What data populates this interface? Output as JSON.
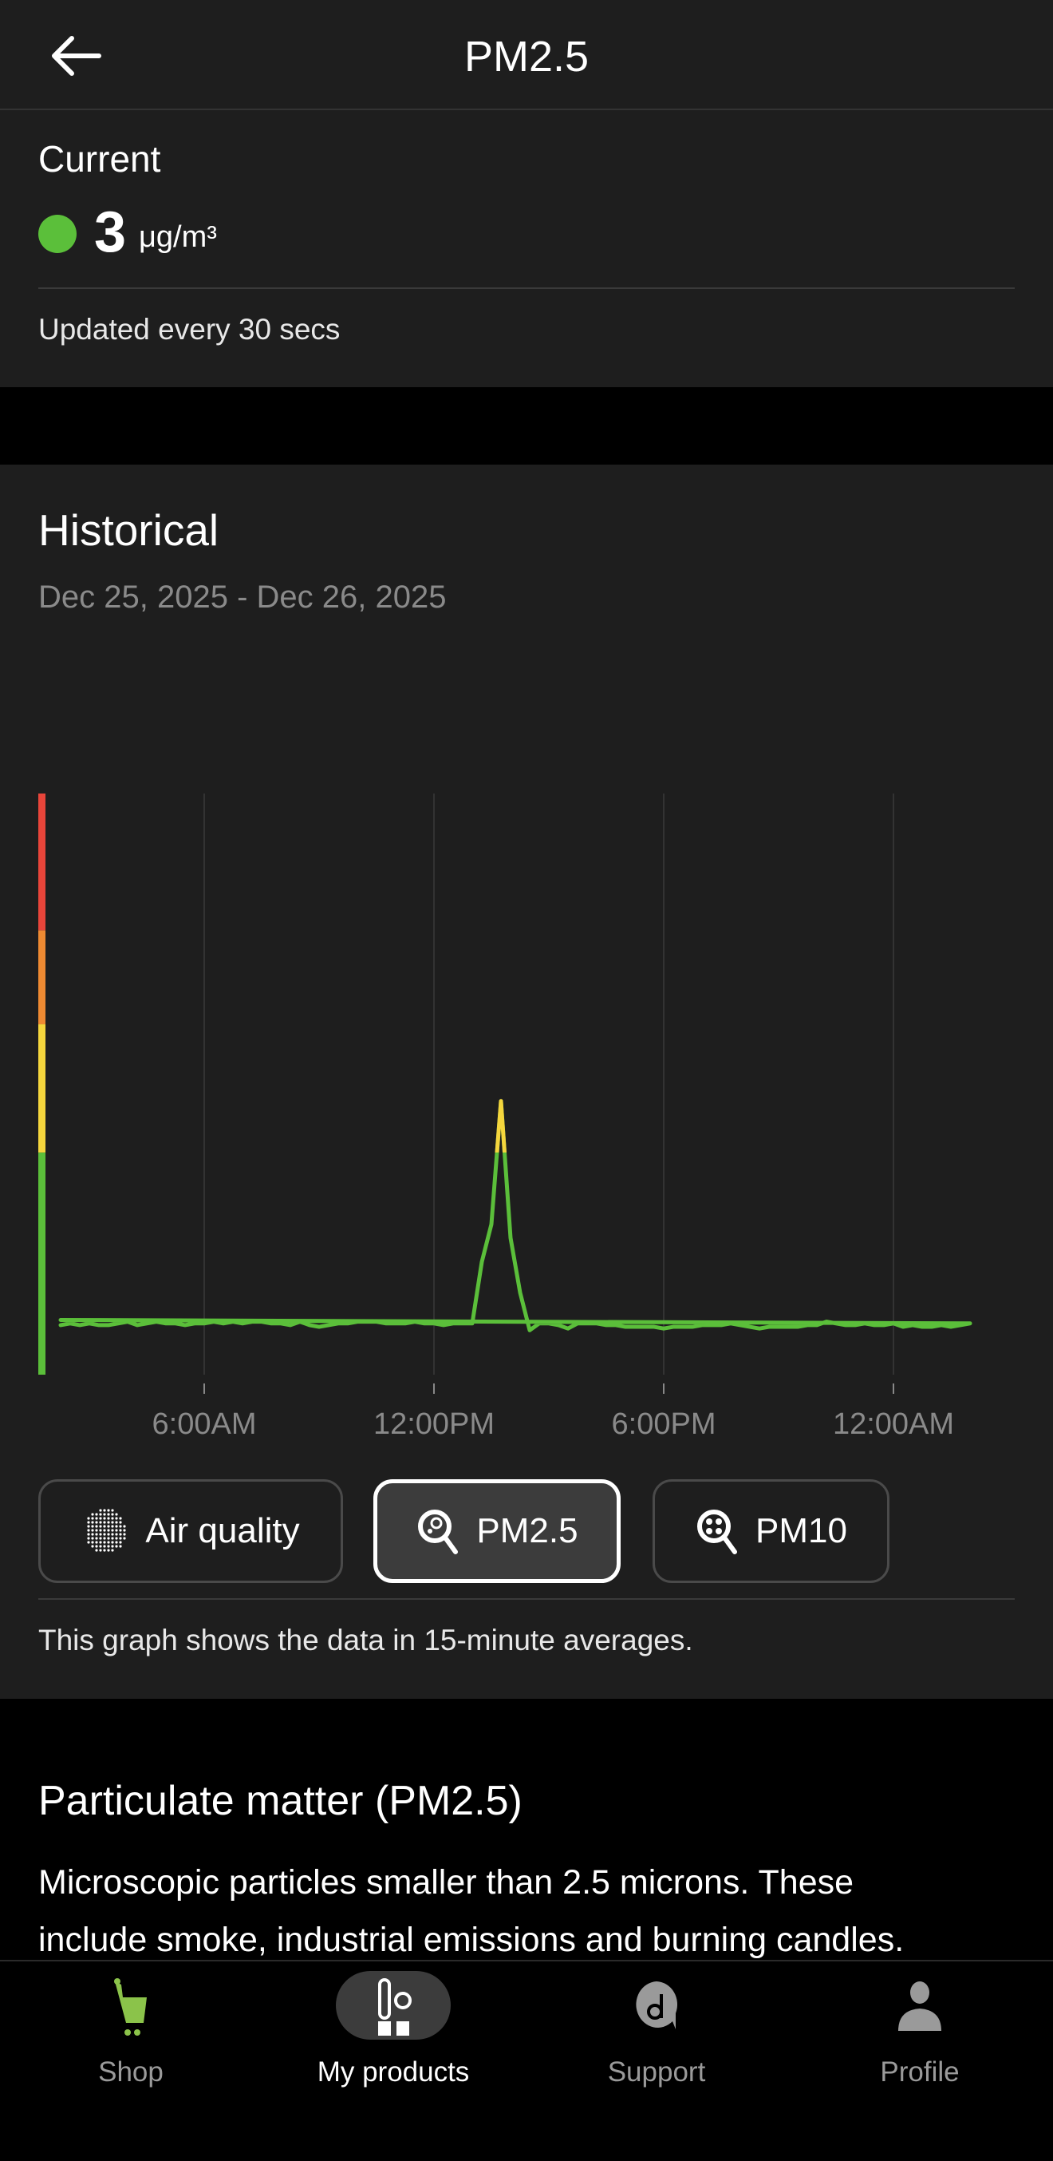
{
  "header": {
    "title": "PM2.5",
    "back_icon": "arrow-left-icon"
  },
  "current": {
    "heading": "Current",
    "value": "3",
    "unit": "μg/m³",
    "status_color": "#5bbf3a",
    "updated_text": "Updated every 30 secs"
  },
  "historical": {
    "heading": "Historical",
    "date_range": "Dec 25, 2025 - Dec 26, 2025",
    "footnote": "This graph shows the data in 15-minute averages.",
    "chips": [
      {
        "label": "Air quality",
        "icon": "air-quality-dots-icon",
        "selected": false
      },
      {
        "label": "PM2.5",
        "icon": "pm25-magnifier-icon",
        "selected": true
      },
      {
        "label": "PM10",
        "icon": "pm10-magnifier-icon",
        "selected": false
      }
    ]
  },
  "chart_data": {
    "type": "line",
    "title": "",
    "xlabel": "",
    "ylabel": "",
    "x_tick_labels": [
      "6:00AM",
      "12:00PM",
      "6:00PM",
      "12:00AM"
    ],
    "x_tick_times": [
      "06:00",
      "12:00",
      "18:00",
      "00:00"
    ],
    "grid": "vertical",
    "ylim": [
      0,
      34
    ],
    "bands": [
      {
        "from": 0,
        "to": 13,
        "color": "#5bbf3a"
      },
      {
        "from": 13,
        "to": 20.5,
        "color": "#f5d63d"
      },
      {
        "from": 20.5,
        "to": 26,
        "color": "#ee8a32"
      },
      {
        "from": 26,
        "to": 34,
        "color": "#e8453a"
      }
    ],
    "x": [
      "02:15",
      "02:30",
      "02:45",
      "03:00",
      "03:15",
      "03:30",
      "03:45",
      "04:00",
      "04:15",
      "04:30",
      "04:45",
      "05:00",
      "05:15",
      "05:30",
      "05:45",
      "06:00",
      "06:15",
      "06:30",
      "06:45",
      "07:00",
      "07:15",
      "07:30",
      "07:45",
      "08:00",
      "08:15",
      "08:30",
      "08:45",
      "09:00",
      "09:15",
      "09:30",
      "09:45",
      "10:00",
      "10:15",
      "10:30",
      "10:45",
      "11:00",
      "11:15",
      "11:30",
      "11:45",
      "12:00",
      "12:15",
      "12:30",
      "12:45",
      "13:00",
      "13:15",
      "13:30",
      "13:45",
      "14:00",
      "14:15",
      "14:30",
      "14:45",
      "15:00",
      "15:15",
      "15:30",
      "15:45",
      "16:00",
      "16:15",
      "16:30",
      "16:45",
      "17:00",
      "17:15",
      "17:30",
      "17:45",
      "18:00",
      "18:15",
      "18:30",
      "18:45",
      "19:00",
      "19:15",
      "19:30",
      "19:45",
      "20:00",
      "20:15",
      "20:30",
      "20:45",
      "21:00",
      "21:15",
      "21:30",
      "21:45",
      "22:00",
      "22:15",
      "22:30",
      "22:45",
      "23:00",
      "23:15",
      "23:30",
      "23:45",
      "00:00",
      "00:15",
      "00:30",
      "00:45",
      "01:00",
      "01:15",
      "01:30",
      "01:45",
      "02:00",
      "02:15"
    ],
    "values": [
      2.9,
      3.0,
      2.9,
      3.0,
      2.9,
      2.9,
      3.0,
      3.1,
      2.9,
      3.0,
      3.1,
      3.0,
      3.0,
      2.9,
      3.0,
      3.0,
      3.1,
      3.0,
      3.1,
      3.0,
      3.1,
      3.1,
      3.0,
      3.0,
      2.9,
      3.1,
      2.9,
      2.8,
      2.9,
      3.0,
      3.0,
      3.1,
      3.1,
      3.1,
      3.0,
      3.0,
      3.0,
      3.1,
      3.0,
      3.0,
      2.9,
      3.0,
      3.0,
      3.0,
      6.6,
      8.8,
      16.0,
      8.0,
      4.8,
      2.6,
      3.0,
      3.0,
      2.9,
      2.7,
      3.0,
      3.0,
      3.0,
      2.9,
      2.9,
      2.8,
      2.8,
      2.8,
      2.8,
      2.7,
      2.8,
      2.8,
      2.8,
      2.9,
      2.9,
      2.9,
      3.0,
      2.9,
      2.8,
      2.7,
      2.8,
      2.8,
      2.8,
      2.8,
      2.9,
      2.9,
      3.1,
      3.0,
      2.9,
      2.9,
      3.0,
      2.9,
      2.9,
      3.0,
      2.8,
      2.9,
      2.8,
      2.8,
      2.9,
      2.8,
      2.9,
      3.0,
      3.2
    ],
    "line_colors": {
      "normal": "#5bbf3a",
      "elevated": "#f5d63d"
    }
  },
  "info": {
    "heading": "Particulate matter (PM2.5)",
    "description_lines": [
      "Microscopic particles smaller than 2.5 microns. These",
      "include smoke, industrial emissions and burning candles."
    ]
  },
  "bottom_nav": [
    {
      "label": "Shop",
      "icon": "cart-icon",
      "active": false,
      "color": "#8bc34a"
    },
    {
      "label": "My products",
      "icon": "my-products-icon",
      "active": true
    },
    {
      "label": "Support",
      "icon": "support-icon",
      "active": false
    },
    {
      "label": "Profile",
      "icon": "profile-icon",
      "active": false
    }
  ]
}
